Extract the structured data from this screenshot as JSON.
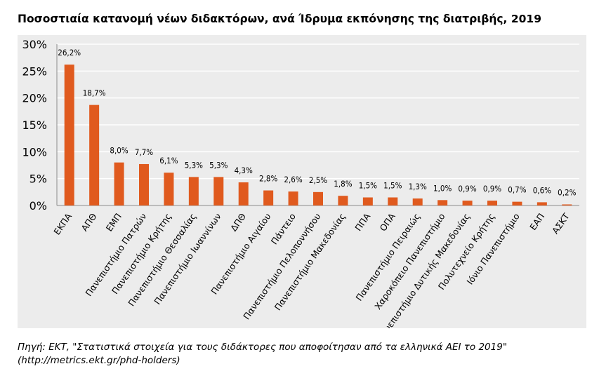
{
  "title": "Ποσοστιαία κατανομή νέων διδακτόρων, ανά Ίδρυμα εκπόνησης της διατριβής, 2019",
  "source_line1": "Πηγή: ΕΚΤ, \"Στατιστικά στοιχεία για τους διδάκτορες που αποφοίτησαν από τα ελληνικά ΑΕΙ το 2019\"",
  "source_line2": "(http://metrics.ekt.gr/phd-holders)",
  "colors": {
    "bar": "#e05a1e",
    "panel": "#ececec",
    "grid": "#ffffff"
  },
  "chart_data": {
    "type": "bar",
    "categories": [
      "ΕΚΠΑ",
      "ΑΠΘ",
      "ΕΜΠ",
      "Πανεπιστήμιο Πατρών",
      "Πανεπιστήμιο Κρήτης",
      "Πανεπιστήμιο Θεσσαλίας",
      "Πανεπιστήμιο Ιωαννίνων",
      "ΔΠΘ",
      "Πανεπιστήμιο Αιγαίου",
      "Πάντειο",
      "Πανεπιστήμιο Πελοποννήσου",
      "Πανεπιστήμιο Μακεδονίας",
      "ΠΠΑ",
      "ΟΠΑ",
      "Πανεπιστήμιο Πειραιώς",
      "Χαροκόπειο Πανεπιστήμιο",
      "Πανεπιστήμιο Δυτικής Μακεδονίας",
      "Πολυτεχνείο Κρήτης",
      "Ιόνιο Πανεπιστήμιο",
      "ΕΑΠ",
      "ΑΣΚΤ"
    ],
    "values": [
      26.2,
      18.7,
      8.0,
      7.7,
      6.1,
      5.3,
      5.3,
      4.3,
      2.8,
      2.6,
      2.5,
      1.8,
      1.5,
      1.5,
      1.3,
      1.0,
      0.9,
      0.9,
      0.7,
      0.6,
      0.2
    ],
    "data_labels": [
      "26,2%",
      "18,7%",
      "8,0%",
      "7,7%",
      "6,1%",
      "5,3%",
      "5,3%",
      "4,3%",
      "2,8%",
      "2,6%",
      "2,5%",
      "1,8%",
      "1,5%",
      "1,5%",
      "1,3%",
      "1,0%",
      "0,9%",
      "0,9%",
      "0,7%",
      "0,6%",
      "0,2%"
    ],
    "y_ticks": [
      "0%",
      "5%",
      "10%",
      "15%",
      "20%",
      "25%",
      "30%"
    ],
    "ylim": [
      0,
      30
    ],
    "y_tick_step": 5,
    "grid": true,
    "legend": "none"
  }
}
